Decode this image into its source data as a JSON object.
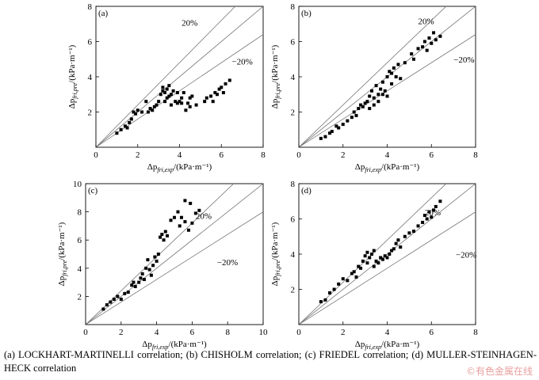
{
  "caption": "(a) LOCKHART-MARTINELLI correlation; (b) CHISHOLM correlation; (c) FRIEDEL correlation; (d) MULLER-STEINHAGEN-HECK correlation",
  "watermark": "©有色金属在线",
  "chart_data": [
    {
      "type": "scatter",
      "panel_label": "(a)",
      "xlabel": "Δp_fri,exp/(kPa·m⁻¹)",
      "ylabel": "Δp_fri,pre/(kPa·m⁻¹)",
      "xlim": [
        0,
        8
      ],
      "ylim": [
        0,
        8
      ],
      "xticks": [
        0,
        2,
        4,
        6,
        8
      ],
      "yticks": [
        2,
        4,
        6,
        8
      ],
      "reference_lines": [
        {
          "label": "20%",
          "slope": 1.2
        },
        {
          "label": "",
          "slope": 1.0
        },
        {
          "label": "−20%",
          "slope": 0.8
        }
      ],
      "points": [
        [
          1.0,
          0.8
        ],
        [
          1.2,
          1.0
        ],
        [
          1.4,
          1.2
        ],
        [
          1.5,
          1.1
        ],
        [
          1.6,
          1.4
        ],
        [
          1.7,
          1.6
        ],
        [
          1.8,
          2.0
        ],
        [
          1.9,
          1.9
        ],
        [
          2.0,
          2.1
        ],
        [
          2.2,
          2.0
        ],
        [
          2.4,
          2.6
        ],
        [
          2.5,
          2.0
        ],
        [
          2.6,
          2.2
        ],
        [
          2.7,
          2.1
        ],
        [
          2.8,
          2.3
        ],
        [
          2.9,
          2.4
        ],
        [
          3.0,
          2.6
        ],
        [
          3.1,
          3.0
        ],
        [
          3.2,
          3.2
        ],
        [
          3.2,
          3.4
        ],
        [
          3.3,
          2.6
        ],
        [
          3.3,
          3.1
        ],
        [
          3.4,
          3.3
        ],
        [
          3.4,
          2.8
        ],
        [
          3.5,
          2.9
        ],
        [
          3.5,
          3.5
        ],
        [
          3.6,
          3.0
        ],
        [
          3.6,
          2.4
        ],
        [
          3.7,
          3.2
        ],
        [
          3.8,
          2.6
        ],
        [
          3.9,
          2.5
        ],
        [
          3.9,
          3.1
        ],
        [
          4.0,
          2.6
        ],
        [
          4.1,
          2.8
        ],
        [
          4.1,
          2.5
        ],
        [
          4.2,
          3.1
        ],
        [
          4.3,
          2.1
        ],
        [
          4.4,
          2.5
        ],
        [
          4.5,
          2.8
        ],
        [
          4.5,
          2.3
        ],
        [
          4.6,
          2.9
        ],
        [
          4.8,
          2.4
        ],
        [
          5.2,
          2.6
        ],
        [
          5.3,
          2.8
        ],
        [
          5.5,
          2.9
        ],
        [
          5.6,
          2.6
        ],
        [
          5.7,
          3.1
        ],
        [
          5.8,
          3.0
        ],
        [
          5.9,
          3.3
        ],
        [
          6.0,
          3.4
        ],
        [
          6.1,
          3.1
        ],
        [
          6.2,
          3.6
        ],
        [
          6.4,
          3.8
        ]
      ]
    },
    {
      "type": "scatter",
      "panel_label": "(b)",
      "xlabel": "Δp_fri,exp/(kPa·m⁻¹)",
      "ylabel": "Δp_fri,pre/(kPa·m⁻¹)",
      "xlim": [
        0,
        8
      ],
      "ylim": [
        0,
        8
      ],
      "xticks": [
        0,
        2,
        4,
        6,
        8
      ],
      "yticks": [
        2,
        4,
        6,
        8
      ],
      "reference_lines": [
        {
          "label": "20%",
          "slope": 1.2
        },
        {
          "label": "",
          "slope": 1.0
        },
        {
          "label": "−20%",
          "slope": 0.8
        }
      ],
      "points": [
        [
          1.0,
          0.5
        ],
        [
          1.2,
          0.6
        ],
        [
          1.4,
          0.8
        ],
        [
          1.5,
          0.9
        ],
        [
          1.7,
          1.2
        ],
        [
          1.8,
          1.1
        ],
        [
          2.0,
          1.3
        ],
        [
          2.2,
          1.5
        ],
        [
          2.4,
          1.7
        ],
        [
          2.5,
          2.0
        ],
        [
          2.6,
          1.8
        ],
        [
          2.7,
          2.2
        ],
        [
          2.8,
          2.4
        ],
        [
          2.9,
          2.3
        ],
        [
          3.0,
          2.5
        ],
        [
          3.1,
          2.6
        ],
        [
          3.2,
          2.2
        ],
        [
          3.2,
          2.9
        ],
        [
          3.3,
          3.2
        ],
        [
          3.4,
          2.4
        ],
        [
          3.4,
          2.8
        ],
        [
          3.5,
          3.5
        ],
        [
          3.6,
          2.6
        ],
        [
          3.6,
          3.0
        ],
        [
          3.7,
          3.3
        ],
        [
          3.8,
          3.7
        ],
        [
          3.8,
          3.0
        ],
        [
          3.9,
          3.2
        ],
        [
          4.0,
          2.9
        ],
        [
          4.0,
          4.0
        ],
        [
          4.1,
          4.3
        ],
        [
          4.2,
          3.6
        ],
        [
          4.2,
          4.2
        ],
        [
          4.3,
          4.5
        ],
        [
          4.4,
          4.0
        ],
        [
          4.5,
          4.7
        ],
        [
          4.6,
          3.9
        ],
        [
          4.8,
          4.8
        ],
        [
          5.1,
          5.3
        ],
        [
          5.2,
          5.0
        ],
        [
          5.4,
          5.6
        ],
        [
          5.6,
          5.7
        ],
        [
          5.7,
          6.0
        ],
        [
          5.8,
          5.5
        ],
        [
          5.9,
          6.2
        ],
        [
          6.0,
          5.9
        ],
        [
          6.1,
          6.5
        ],
        [
          6.2,
          6.1
        ],
        [
          6.4,
          6.3
        ]
      ]
    },
    {
      "type": "scatter",
      "panel_label": "(c)",
      "xlabel": "Δp_fri,exp/(kPa·m⁻¹)",
      "ylabel": "Δp_fri,pre/(kPa·m⁻¹)",
      "xlim": [
        0,
        10
      ],
      "ylim": [
        0,
        10
      ],
      "xticks": [
        0,
        2,
        4,
        6,
        8,
        10
      ],
      "yticks": [
        2,
        4,
        6,
        8,
        10
      ],
      "reference_lines": [
        {
          "label": "20%",
          "slope": 1.2
        },
        {
          "label": "",
          "slope": 1.0
        },
        {
          "label": "−20%",
          "slope": 0.8
        }
      ],
      "points": [
        [
          1.0,
          1.1
        ],
        [
          1.2,
          1.4
        ],
        [
          1.4,
          1.6
        ],
        [
          1.6,
          1.8
        ],
        [
          1.8,
          2.0
        ],
        [
          2.0,
          1.8
        ],
        [
          2.2,
          2.2
        ],
        [
          2.4,
          2.3
        ],
        [
          2.6,
          2.8
        ],
        [
          2.7,
          3.0
        ],
        [
          2.8,
          2.7
        ],
        [
          3.0,
          3.0
        ],
        [
          3.1,
          3.3
        ],
        [
          3.2,
          3.6
        ],
        [
          3.3,
          3.2
        ],
        [
          3.4,
          4.0
        ],
        [
          3.5,
          4.6
        ],
        [
          3.6,
          3.9
        ],
        [
          3.7,
          3.5
        ],
        [
          3.8,
          4.2
        ],
        [
          3.9,
          4.8
        ],
        [
          4.0,
          4.5
        ],
        [
          4.1,
          5.0
        ],
        [
          4.2,
          6.2
        ],
        [
          4.3,
          6.4
        ],
        [
          4.4,
          6.0
        ],
        [
          4.5,
          6.6
        ],
        [
          4.6,
          6.3
        ],
        [
          4.8,
          7.4
        ],
        [
          5.0,
          7.6
        ],
        [
          5.2,
          8.0
        ],
        [
          5.3,
          7.0
        ],
        [
          5.4,
          7.6
        ],
        [
          5.6,
          7.3
        ],
        [
          5.6,
          8.8
        ],
        [
          5.8,
          6.7
        ],
        [
          5.9,
          8.6
        ],
        [
          6.0,
          7.2
        ],
        [
          6.2,
          7.9
        ],
        [
          6.4,
          8.1
        ]
      ]
    },
    {
      "type": "scatter",
      "panel_label": "(d)",
      "xlabel": "Δp_fri,exp/(kPa·m⁻¹)",
      "ylabel": "Δp_fri,pre/(kPa·m⁻¹)",
      "xlim": [
        0,
        8
      ],
      "ylim": [
        0,
        8
      ],
      "xticks": [
        0,
        2,
        4,
        6,
        8
      ],
      "yticks": [
        2,
        4,
        6,
        8
      ],
      "reference_lines": [
        {
          "label": "20%",
          "slope": 1.2
        },
        {
          "label": "",
          "slope": 1.0
        },
        {
          "label": "−20%",
          "slope": 0.8
        }
      ],
      "points": [
        [
          1.0,
          1.3
        ],
        [
          1.2,
          1.4
        ],
        [
          1.4,
          1.8
        ],
        [
          1.6,
          2.0
        ],
        [
          1.8,
          2.3
        ],
        [
          2.0,
          2.6
        ],
        [
          2.2,
          2.5
        ],
        [
          2.4,
          2.9
        ],
        [
          2.5,
          3.0
        ],
        [
          2.6,
          2.7
        ],
        [
          2.7,
          3.3
        ],
        [
          2.8,
          3.2
        ],
        [
          2.9,
          3.6
        ],
        [
          3.0,
          3.9
        ],
        [
          3.1,
          4.1
        ],
        [
          3.1,
          3.5
        ],
        [
          3.2,
          3.8
        ],
        [
          3.3,
          4.0
        ],
        [
          3.4,
          3.3
        ],
        [
          3.4,
          4.2
        ],
        [
          3.5,
          3.6
        ],
        [
          3.6,
          3.5
        ],
        [
          3.7,
          3.8
        ],
        [
          3.8,
          3.7
        ],
        [
          3.9,
          3.9
        ],
        [
          4.0,
          3.8
        ],
        [
          4.1,
          4.0
        ],
        [
          4.2,
          4.2
        ],
        [
          4.3,
          4.3
        ],
        [
          4.4,
          4.6
        ],
        [
          4.5,
          4.8
        ],
        [
          4.6,
          4.4
        ],
        [
          4.8,
          5.0
        ],
        [
          5.0,
          5.2
        ],
        [
          5.2,
          5.3
        ],
        [
          5.4,
          5.6
        ],
        [
          5.6,
          5.8
        ],
        [
          5.7,
          6.2
        ],
        [
          5.8,
          6.0
        ],
        [
          5.9,
          6.4
        ],
        [
          6.0,
          6.1
        ],
        [
          6.1,
          6.5
        ],
        [
          6.2,
          6.7
        ],
        [
          6.4,
          7.0
        ]
      ]
    }
  ]
}
